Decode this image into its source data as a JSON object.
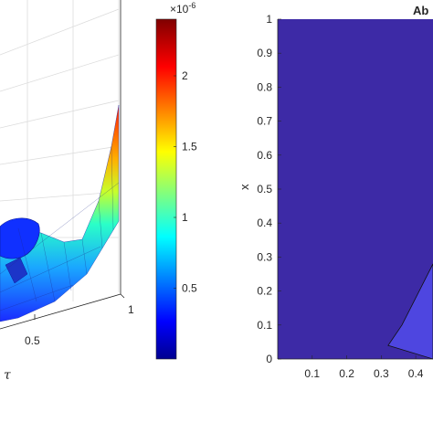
{
  "chart_data": [
    {
      "type": "surface",
      "description_of_visible_part": "left panel: 3D surface plot clipped at left edge",
      "x_axis": {
        "label": "τ",
        "ticks": [
          0.5,
          1
        ],
        "tick_labels": [
          "0.5",
          "1"
        ]
      },
      "colorbar": {
        "colormap": "jet",
        "range": [
          0.0,
          2.4
        ],
        "exponent_label": "×10",
        "exponent_power": "-6",
        "ticks": [
          0.5,
          1,
          1.5,
          2
        ],
        "tick_labels": [
          "0.5",
          "1",
          "1.5",
          "2"
        ]
      },
      "grid": true
    },
    {
      "type": "heatmap",
      "title": "Ab",
      "ylabel": "x",
      "xlim": [
        0,
        0.45
      ],
      "ylim": [
        0,
        1
      ],
      "x_ticks": [
        0.1,
        0.2,
        0.3,
        0.4
      ],
      "x_tick_labels": [
        "0.1",
        "0.2",
        "0.3",
        "0.4"
      ],
      "y_ticks": [
        0,
        0.1,
        0.2,
        0.3,
        0.4,
        0.5,
        0.6,
        0.7,
        0.8,
        0.9,
        1
      ],
      "y_tick_labels": [
        "0",
        "0.1",
        "0.2",
        "0.3",
        "0.4",
        "0.5",
        "0.6",
        "0.7",
        "0.8",
        "0.9",
        "1"
      ],
      "region_colors": {
        "background": "#3d2aa6",
        "region": "#4e46e0"
      },
      "region_boundary": [
        [
          0.32,
          0.04
        ],
        [
          0.36,
          0.1
        ],
        [
          0.4,
          0.18
        ],
        [
          0.45,
          0.28
        ]
      ]
    }
  ]
}
